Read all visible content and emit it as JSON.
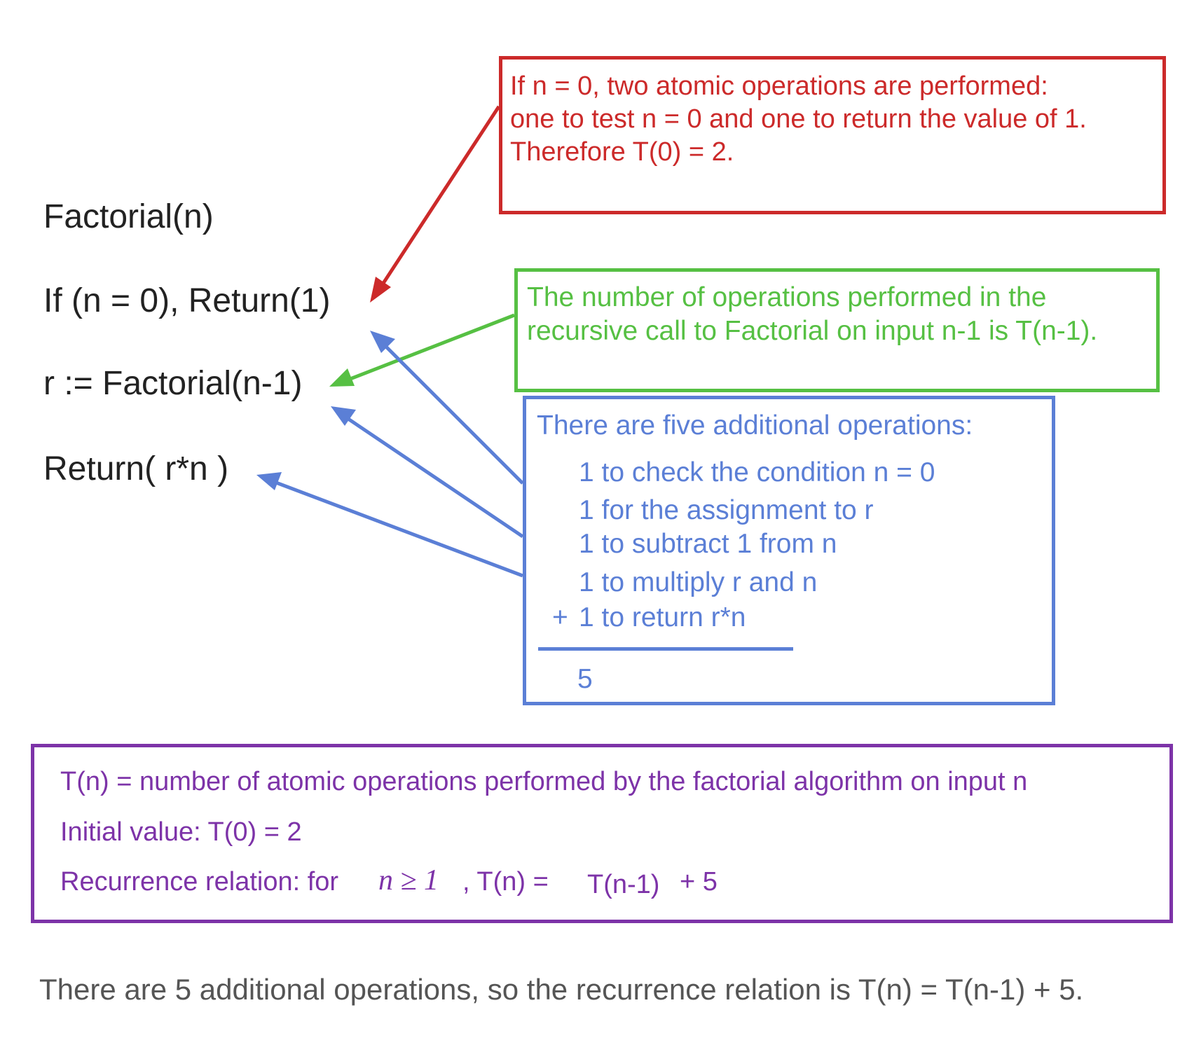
{
  "code": {
    "line1": "Factorial(n)",
    "line2": "If (n = 0), Return(1)",
    "line3": "r := Factorial(n-1)",
    "line4": "Return( r*n )"
  },
  "red_note": {
    "line1": "If n = 0, two atomic operations are performed:",
    "line2": "one to test n = 0 and one to return the value of 1.",
    "line3": "Therefore T(0) = 2."
  },
  "green_note": {
    "line1": "The number of operations performed in the",
    "line2": "recursive call to Factorial on input n-1 is T(n-1)."
  },
  "blue_note": {
    "heading": "There are five additional operations:",
    "items": [
      "1 to check the condition n = 0",
      "1 for the assignment to r",
      "1 to subtract 1 from n",
      "1 to multiply r and n",
      "1 to return r*n"
    ],
    "plus_sign": "+",
    "total": "5"
  },
  "summary": {
    "line1": "T(n) = number of atomic operations performed by the factorial algorithm on input n",
    "line2": "Initial value: T(0) = 2",
    "line3_prefix": "Recurrence relation: for",
    "line3_math": "n ≥ 1",
    "line3_mid": ", T(n) =",
    "line3_term1": "T(n-1)",
    "line3_term2": "+ 5"
  },
  "footer": "There are 5 additional operations, so the recurrence relation is T(n) = T(n-1) + 5.",
  "colors": {
    "red": "#cc2a2a",
    "green": "#56c043",
    "blue": "#5b7fd6",
    "purple": "#7d33a8"
  }
}
